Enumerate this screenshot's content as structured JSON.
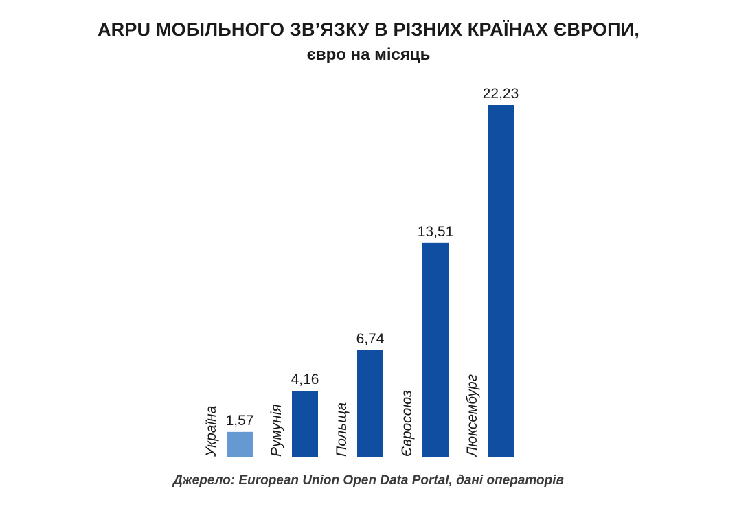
{
  "title": "ARPU МОБІЛЬНОГО ЗВ’ЯЗКУ В РІЗНИХ КРАЇНАХ ЄВРОПИ,",
  "subtitle": "євро на місяць",
  "source": "Джерело: European Union Open Data Portal, дані операторів",
  "colors": {
    "highlight": "#6499d2",
    "default": "#0f4ea0",
    "text": "#1a1a1a"
  },
  "chart_data": {
    "type": "bar",
    "title": "ARPU МОБІЛЬНОГО ЗВ’ЯЗКУ В РІЗНИХ КРАЇНАХ ЄВРОПИ,",
    "subtitle": "євро на місяць",
    "categories": [
      "Україна",
      "Румунія",
      "Польща",
      "Євросоюз",
      "Люксембург"
    ],
    "values": [
      1.57,
      4.16,
      6.74,
      13.51,
      22.23
    ],
    "value_labels": [
      "1,57",
      "4,16",
      "6,74",
      "13,51",
      "22,23"
    ],
    "highlight_index": 0,
    "xlabel": "",
    "ylabel": "",
    "ylim": [
      0,
      22.23
    ],
    "grid": false,
    "legend": "none",
    "category_label_orientation": "vertical"
  }
}
